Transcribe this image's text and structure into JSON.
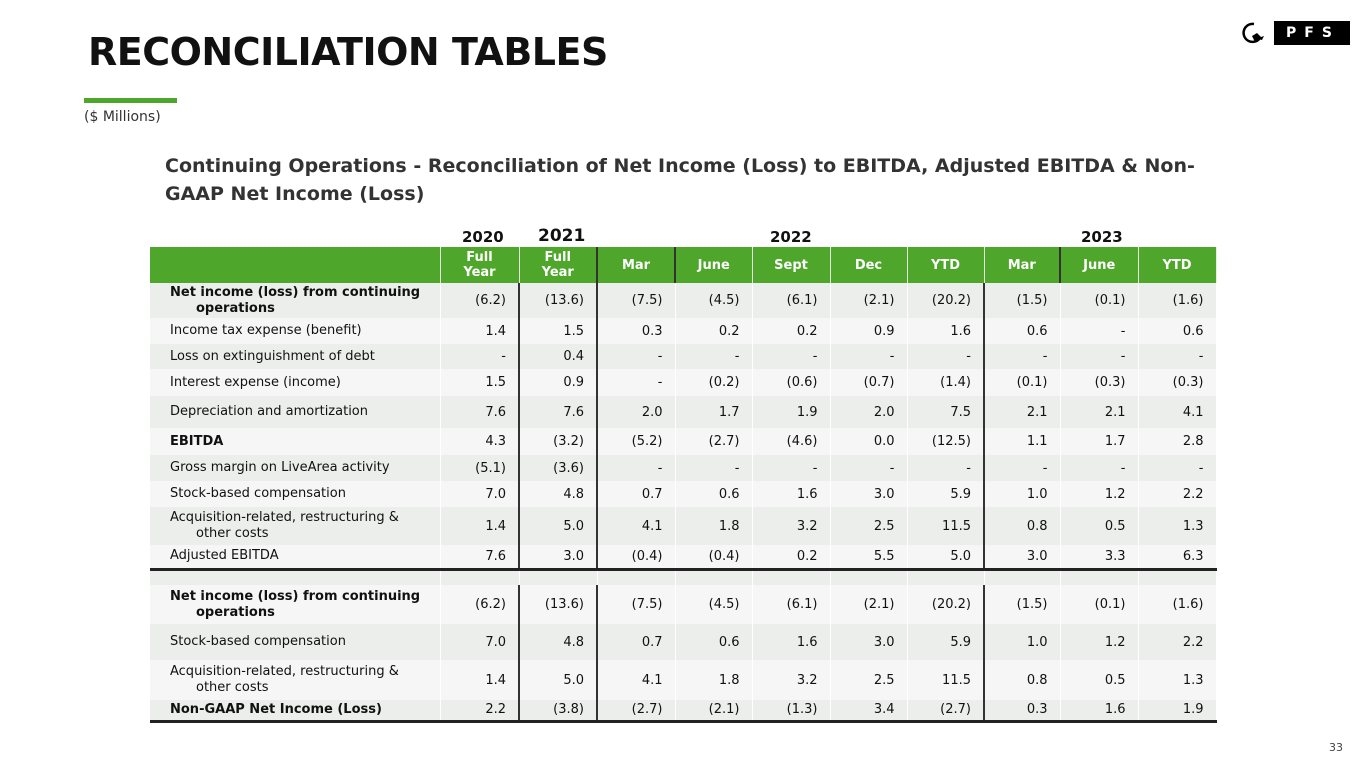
{
  "title": "RECONCILIATION TABLES",
  "units": "($ Millions)",
  "logo_text": "PFS",
  "subtitle": "Continuing Operations - Reconciliation of Net Income (Loss) to EBITDA, Adjusted EBITDA & Non-GAAP Net Income (Loss)",
  "years": [
    "2020",
    "2021",
    "2022",
    "2023"
  ],
  "columns": [
    "Full Year",
    "Full Year",
    "Mar",
    "June",
    "Sept",
    "Dec",
    "YTD",
    "Mar",
    "June",
    "YTD"
  ],
  "rows": [
    {
      "label": "Net income (loss) from continuing",
      "label2": "operations",
      "bold": true,
      "values": [
        "(6.2)",
        "(13.6)",
        "(7.5)",
        "(4.5)",
        "(6.1)",
        "(2.1)",
        "(20.2)",
        "(1.5)",
        "(0.1)",
        "(1.6)"
      ]
    },
    {
      "label": "Income tax expense (benefit)",
      "values": [
        "1.4",
        "1.5",
        "0.3",
        "0.2",
        "0.2",
        "0.9",
        "1.6",
        "0.6",
        "-",
        "0.6"
      ]
    },
    {
      "label": "Loss on extinguishment of debt",
      "values": [
        "-",
        "0.4",
        "-",
        "-",
        "-",
        "-",
        "-",
        "-",
        "-",
        "-"
      ]
    },
    {
      "label": "Interest expense (income)",
      "values": [
        "1.5",
        "0.9",
        "-",
        "(0.2)",
        "(0.6)",
        "(0.7)",
        "(1.4)",
        "(0.1)",
        "(0.3)",
        "(0.3)"
      ]
    },
    {
      "label": "Depreciation and amortization",
      "values": [
        "7.6",
        "7.6",
        "2.0",
        "1.7",
        "1.9",
        "2.0",
        "7.5",
        "2.1",
        "2.1",
        "4.1"
      ]
    },
    {
      "label": "EBITDA",
      "bold": true,
      "values": [
        "4.3",
        "(3.2)",
        "(5.2)",
        "(2.7)",
        "(4.6)",
        "0.0",
        "(12.5)",
        "1.1",
        "1.7",
        "2.8"
      ]
    },
    {
      "label": "Gross margin on LiveArea activity",
      "values": [
        "(5.1)",
        "(3.6)",
        "-",
        "-",
        "-",
        "-",
        "-",
        "-",
        "-",
        "-"
      ]
    },
    {
      "label": "Stock-based compensation",
      "values": [
        "7.0",
        "4.8",
        "0.7",
        "0.6",
        "1.6",
        "3.0",
        "5.9",
        "1.0",
        "1.2",
        "2.2"
      ]
    },
    {
      "label": "Acquisition-related, restructuring &",
      "label2": "other costs",
      "values": [
        "1.4",
        "5.0",
        "4.1",
        "1.8",
        "3.2",
        "2.5",
        "11.5",
        "0.8",
        "0.5",
        "1.3"
      ]
    },
    {
      "label": "Adjusted EBITDA",
      "thick": true,
      "values": [
        "7.6",
        "3.0",
        "(0.4)",
        "(0.4)",
        "0.2",
        "5.5",
        "5.0",
        "3.0",
        "3.3",
        "6.3"
      ]
    },
    {
      "blank": true
    },
    {
      "label": "Net income (loss) from continuing",
      "label2": "operations",
      "bold": true,
      "values": [
        "(6.2)",
        "(13.6)",
        "(7.5)",
        "(4.5)",
        "(6.1)",
        "(2.1)",
        "(20.2)",
        "(1.5)",
        "(0.1)",
        "(1.6)"
      ]
    },
    {
      "label": "Stock-based compensation",
      "values": [
        "7.0",
        "4.8",
        "0.7",
        "0.6",
        "1.6",
        "3.0",
        "5.9",
        "1.0",
        "1.2",
        "2.2"
      ]
    },
    {
      "label": "Acquisition-related, restructuring &",
      "label2": "other costs",
      "values": [
        "1.4",
        "5.0",
        "4.1",
        "1.8",
        "3.2",
        "2.5",
        "11.5",
        "0.8",
        "0.5",
        "1.3"
      ]
    },
    {
      "label": "Non-GAAP Net Income (Loss)",
      "bold": true,
      "thick": true,
      "values": [
        "2.2",
        "(3.8)",
        "(2.7)",
        "(2.1)",
        "(1.3)",
        "3.4",
        "(2.7)",
        "0.3",
        "1.6",
        "1.9"
      ]
    }
  ],
  "page_number": "33"
}
